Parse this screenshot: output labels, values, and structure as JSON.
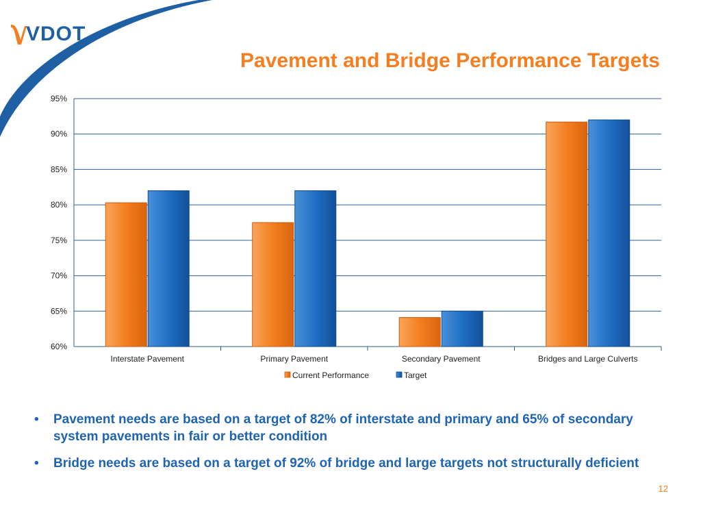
{
  "logo": {
    "text": "VDOT"
  },
  "slide": {
    "title": "Pavement and Bridge Performance Targets",
    "page_number": "12"
  },
  "bullets": [
    "Pavement needs are based on a target of 82% of interstate and primary and 65% of secondary system pavements in fair or better condition",
    "Bridge needs are based on a target of 92% of bridge and large targets not structurally deficient"
  ],
  "colors": {
    "title": "#f47e20",
    "current": "#f47e20",
    "target": "#1f6fc4",
    "bullet_text": "#1f64b0",
    "logo": "#1f5fa3"
  },
  "chart_data": {
    "type": "bar",
    "categories": [
      "Interstate Pavement",
      "Primary Pavement",
      "Secondary Pavement",
      "Bridges and Large Culverts"
    ],
    "series": [
      {
        "name": "Current Performance",
        "values": [
          80.3,
          77.5,
          64.1,
          91.7
        ],
        "color": "#f47e20"
      },
      {
        "name": "Target",
        "values": [
          82,
          82,
          65,
          92
        ],
        "color": "#1f6fc4"
      }
    ],
    "ylim": [
      60,
      95
    ],
    "yticks": [
      60,
      65,
      70,
      75,
      80,
      85,
      90,
      95
    ],
    "ytick_labels": [
      "60%",
      "65%",
      "70%",
      "75%",
      "80%",
      "85%",
      "90%",
      "95%"
    ],
    "grid": true,
    "legend": "bottom"
  }
}
